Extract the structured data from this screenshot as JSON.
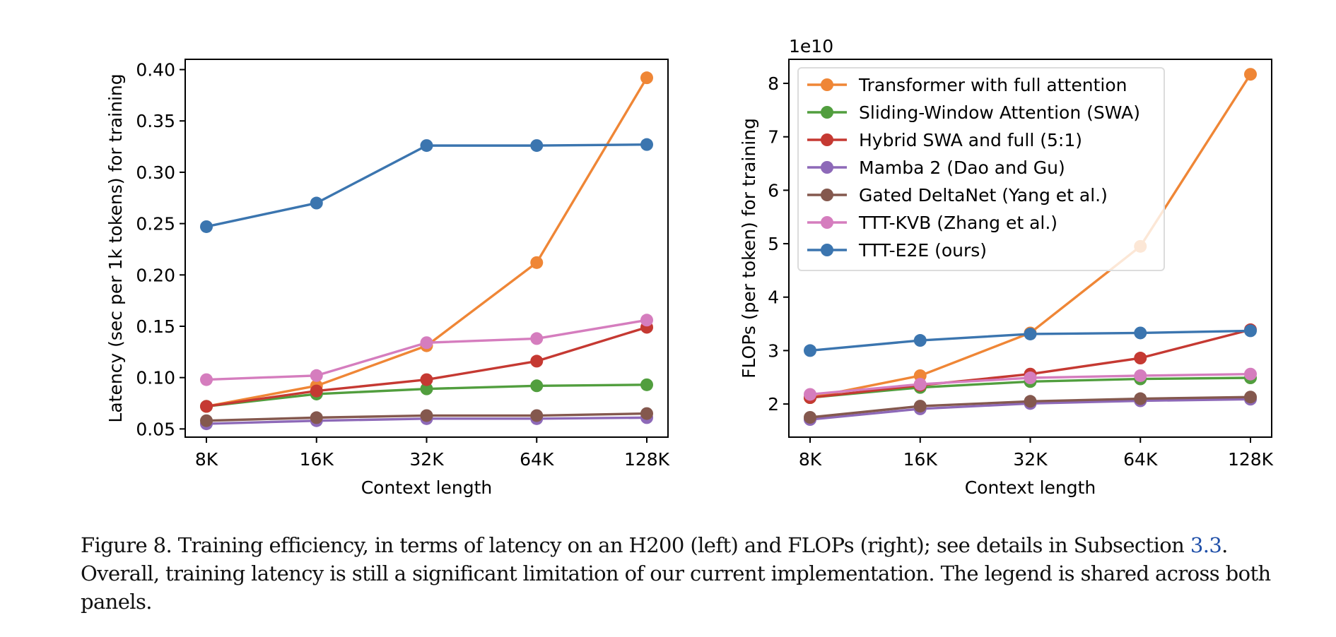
{
  "chart_data": [
    {
      "type": "line",
      "panel": "left",
      "title": "",
      "xlabel": "Context length",
      "ylabel": "Latency (sec per 1k tokens) for training",
      "x": [
        "8K",
        "16K",
        "32K",
        "64K",
        "128K"
      ],
      "x_scale": "log2",
      "ylim": [
        0.042,
        0.41
      ],
      "yticks": [
        0.05,
        0.1,
        0.15,
        0.2,
        0.25,
        0.3,
        0.35,
        0.4
      ],
      "ytick_labels": [
        "0.05",
        "0.10",
        "0.15",
        "0.20",
        "0.25",
        "0.30",
        "0.35",
        "0.40"
      ],
      "grid": false,
      "legend": null,
      "series": [
        {
          "name": "Transformer with full attention",
          "color": "#ef8636",
          "values": [
            0.072,
            0.092,
            0.131,
            0.212,
            0.392
          ]
        },
        {
          "name": "Sliding-Window Attention (SWA)",
          "color": "#519e3e",
          "values": [
            0.072,
            0.084,
            0.089,
            0.092,
            0.093
          ]
        },
        {
          "name": "Hybrid SWA and full (5:1)",
          "color": "#c53932",
          "values": [
            0.072,
            0.087,
            0.098,
            0.116,
            0.149
          ]
        },
        {
          "name": "Mamba 2 (Dao and Gu)",
          "color": "#8d69b8",
          "values": [
            0.055,
            0.058,
            0.06,
            0.06,
            0.061
          ]
        },
        {
          "name": "Gated DeltaNet (Yang et al.)",
          "color": "#84584e",
          "values": [
            0.058,
            0.061,
            0.063,
            0.063,
            0.065
          ]
        },
        {
          "name": "TTT-KVB (Zhang et al.)",
          "color": "#d57dbe",
          "values": [
            0.098,
            0.102,
            0.134,
            0.138,
            0.156
          ]
        },
        {
          "name": "TTT-E2E (ours)",
          "color": "#3b75af",
          "values": [
            0.247,
            0.27,
            0.326,
            0.326,
            0.327
          ]
        }
      ]
    },
    {
      "type": "line",
      "panel": "right",
      "title": "",
      "xlabel": "Context length",
      "ylabel": "FLOPs (per token) for training",
      "offset_label": "1e10",
      "x": [
        "8K",
        "16K",
        "32K",
        "64K",
        "128K"
      ],
      "x_scale": "log2",
      "ylim": [
        1.38,
        8.45
      ],
      "yticks": [
        2,
        3,
        4,
        5,
        6,
        7,
        8
      ],
      "ytick_labels": [
        "2",
        "3",
        "4",
        "5",
        "6",
        "7",
        "8"
      ],
      "grid": false,
      "legend": "upper-left",
      "series": [
        {
          "name": "Transformer with full attention",
          "color": "#ef8636",
          "values": [
            2.12,
            2.53,
            3.33,
            4.95,
            8.17
          ]
        },
        {
          "name": "Sliding-Window Attention (SWA)",
          "color": "#519e3e",
          "values": [
            2.12,
            2.31,
            2.42,
            2.47,
            2.49
          ]
        },
        {
          "name": "Hybrid SWA and full (5:1)",
          "color": "#c53932",
          "values": [
            2.12,
            2.35,
            2.56,
            2.86,
            3.39
          ]
        },
        {
          "name": "Mamba 2 (Dao and Gu)",
          "color": "#8d69b8",
          "values": [
            1.71,
            1.91,
            2.01,
            2.06,
            2.09
          ]
        },
        {
          "name": "Gated DeltaNet (Yang et al.)",
          "color": "#84584e",
          "values": [
            1.75,
            1.96,
            2.05,
            2.1,
            2.13
          ]
        },
        {
          "name": "TTT-KVB (Zhang et al.)",
          "color": "#d57dbe",
          "values": [
            2.18,
            2.37,
            2.49,
            2.53,
            2.56
          ]
        },
        {
          "name": "TTT-E2E (ours)",
          "color": "#3b75af",
          "values": [
            3.0,
            3.19,
            3.31,
            3.33,
            3.37
          ]
        }
      ]
    }
  ],
  "caption": {
    "prefix": "Figure 8. Training efficiency, in terms of latency on an H200 (left) and FLOPs (right); see details in Subsection ",
    "ref": "3.3",
    "suffix": ". Overall, training latency is still a significant limitation of our current implementation. The legend is shared across both panels."
  }
}
